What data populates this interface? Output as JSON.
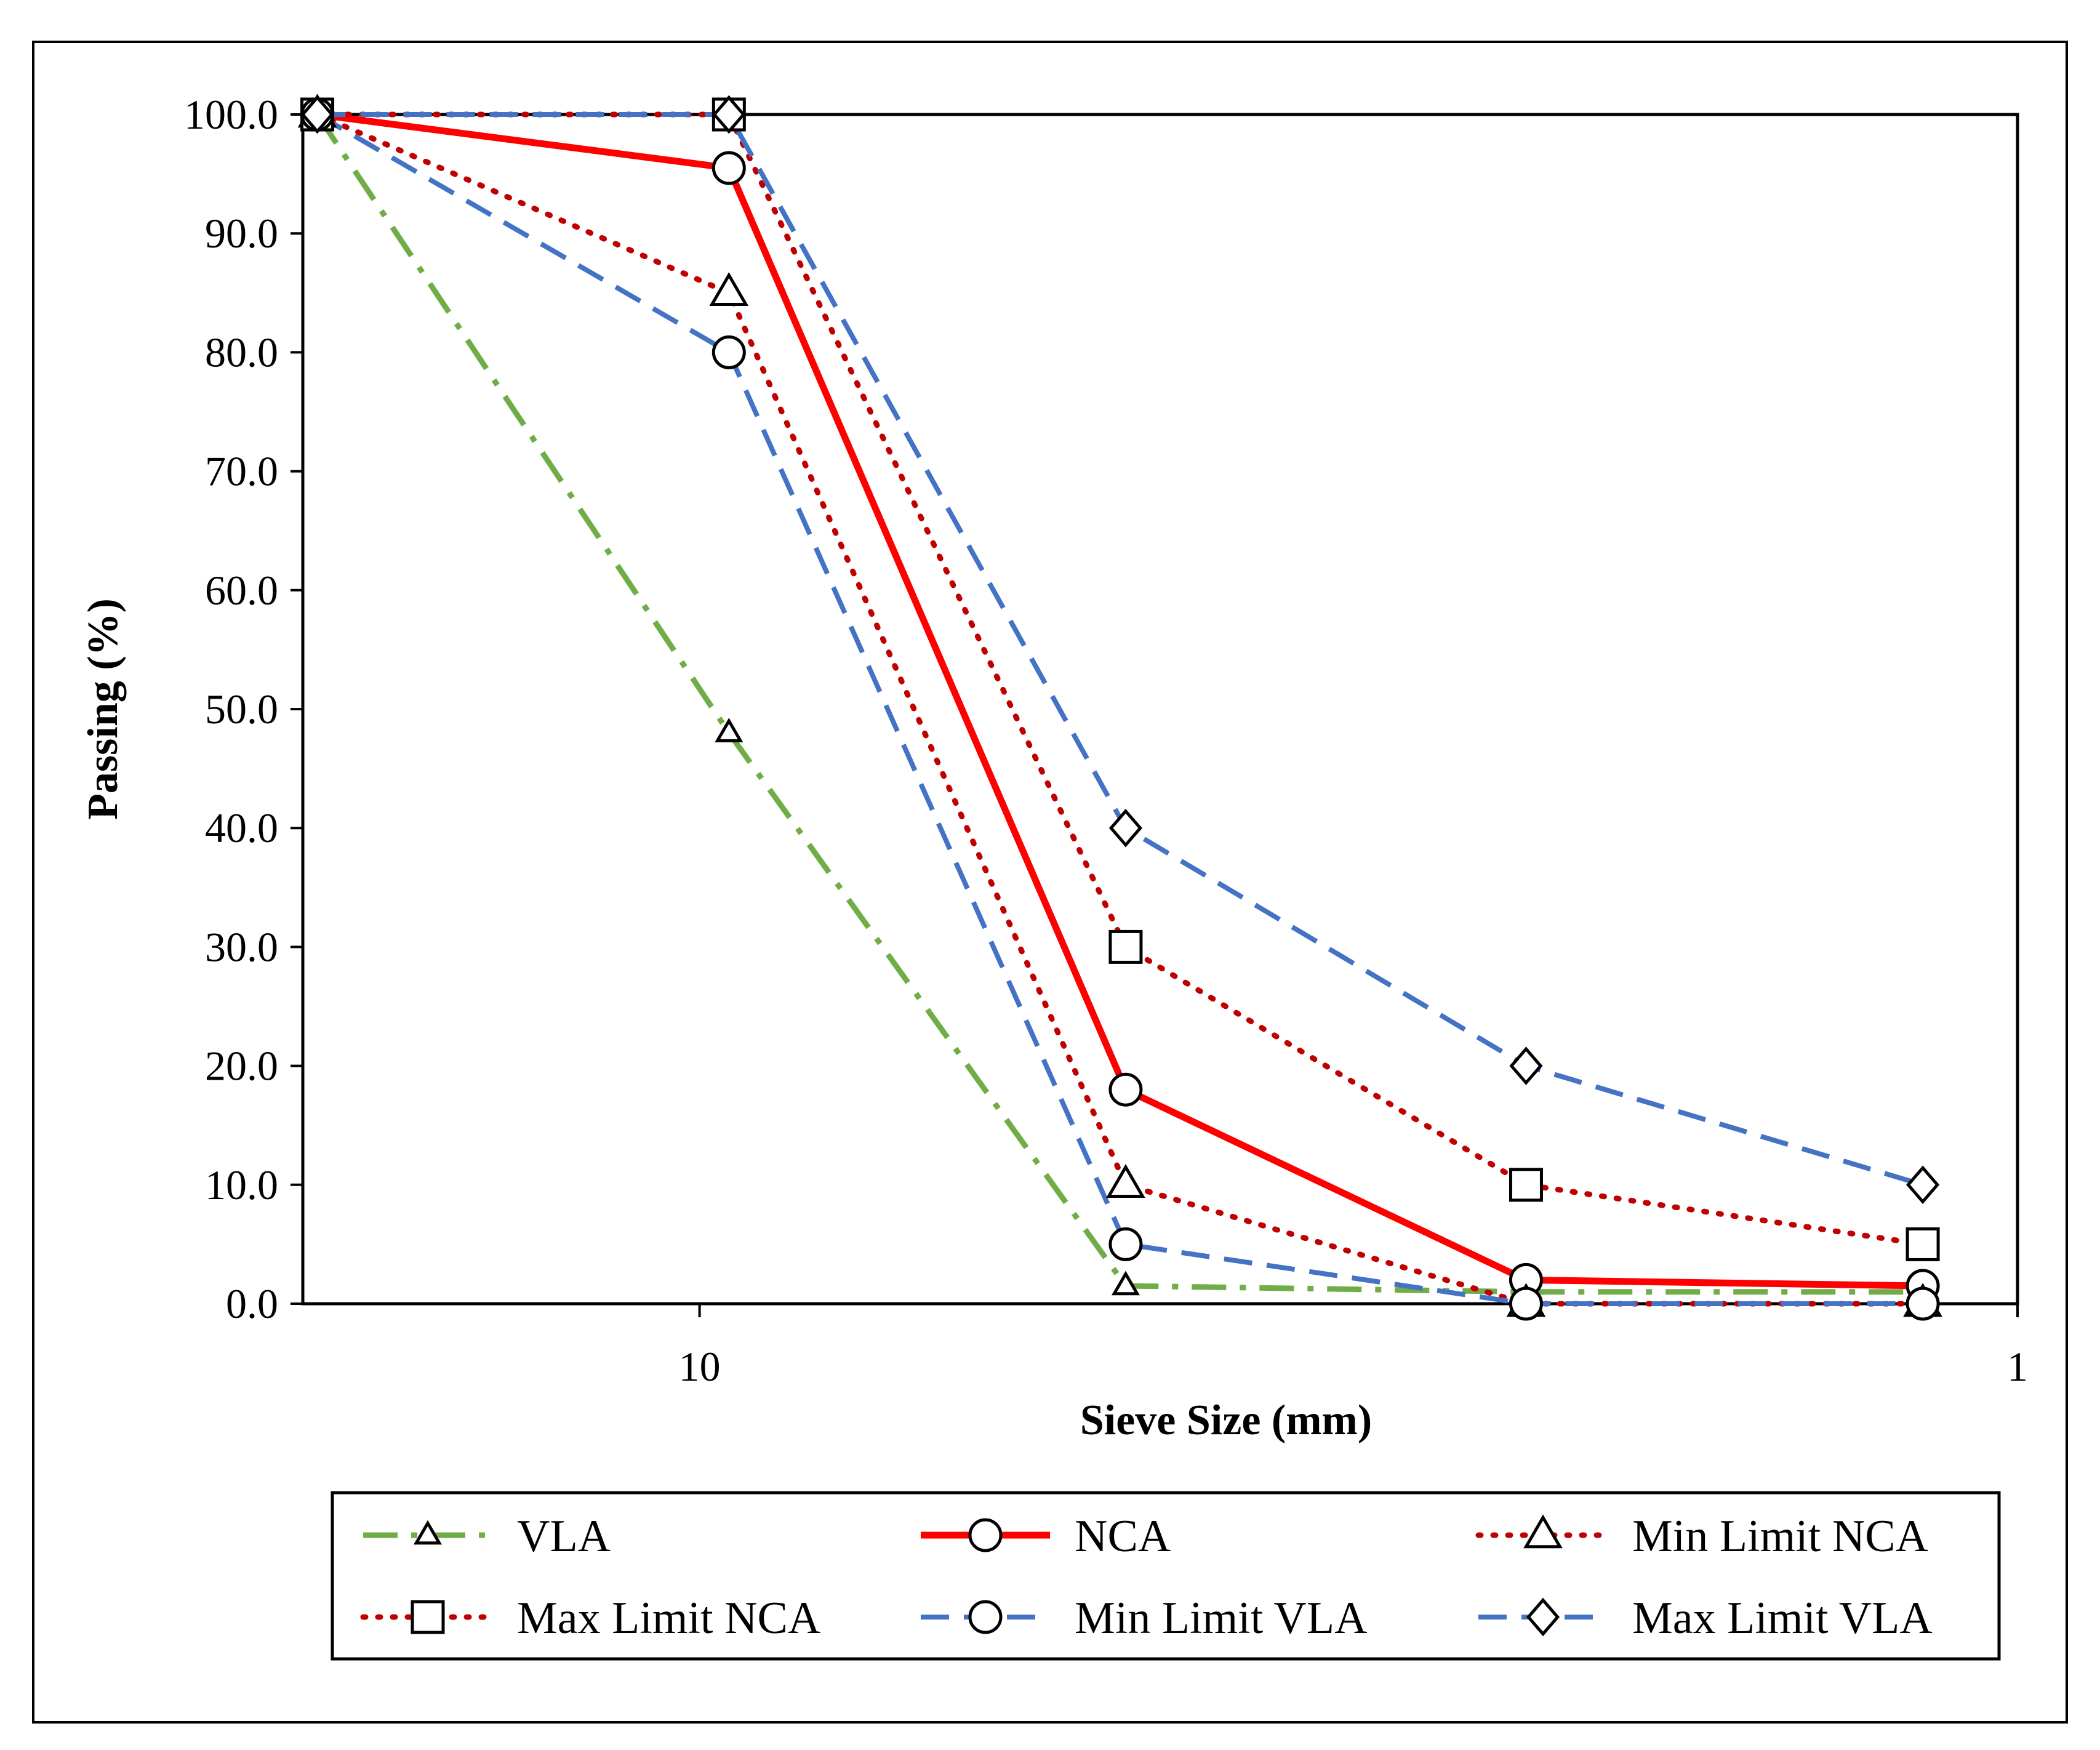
{
  "chart_data": {
    "type": "line",
    "x_scale": "log",
    "x_reversed": true,
    "xlabel": "Sieve Size (mm)",
    "ylabel": "Passing (%)",
    "xlim": [
      20,
      1
    ],
    "ylim": [
      0,
      100
    ],
    "y_ticks": [
      0,
      10,
      20,
      30,
      40,
      50,
      60,
      70,
      80,
      90,
      100
    ],
    "y_tick_labels": [
      "0.0",
      "10.0",
      "20.0",
      "30.0",
      "40.0",
      "50.0",
      "60.0",
      "70.0",
      "80.0",
      "90.0",
      "100.0"
    ],
    "x_ticks": [
      10,
      1
    ],
    "x_tick_labels": [
      "10",
      "1"
    ],
    "x": [
      19.5,
      9.5,
      4.75,
      2.36,
      1.18
    ],
    "series": [
      {
        "name": "VLA",
        "values": [
          100,
          48,
          1.5,
          1,
          1
        ],
        "color": "#70ad47",
        "dash": "dashdot",
        "marker": "triangle",
        "marker_size": "small"
      },
      {
        "name": "NCA",
        "values": [
          100,
          95.5,
          18,
          2,
          1.5
        ],
        "color": "#ff0000",
        "dash": "solid",
        "marker": "circle",
        "marker_size": "large"
      },
      {
        "name": "Min Limit NCA",
        "values": [
          100,
          85,
          10,
          0,
          0
        ],
        "color": "#c00000",
        "dash": "dot",
        "marker": "triangle",
        "marker_size": "large"
      },
      {
        "name": "Max Limit NCA",
        "values": [
          100,
          100,
          30,
          10,
          5
        ],
        "color": "#c00000",
        "dash": "dot",
        "marker": "square",
        "marker_size": "large"
      },
      {
        "name": "Min Limit VLA",
        "values": [
          100,
          80,
          5,
          0,
          0
        ],
        "color": "#4472c4",
        "dash": "dash",
        "marker": "circle",
        "marker_size": "large"
      },
      {
        "name": "Max Limit VLA",
        "values": [
          100,
          100,
          40,
          20,
          10
        ],
        "color": "#4472c4",
        "dash": "dash",
        "marker": "diamond",
        "marker_size": "large"
      }
    ],
    "legend_position": "bottom",
    "grid": false
  }
}
